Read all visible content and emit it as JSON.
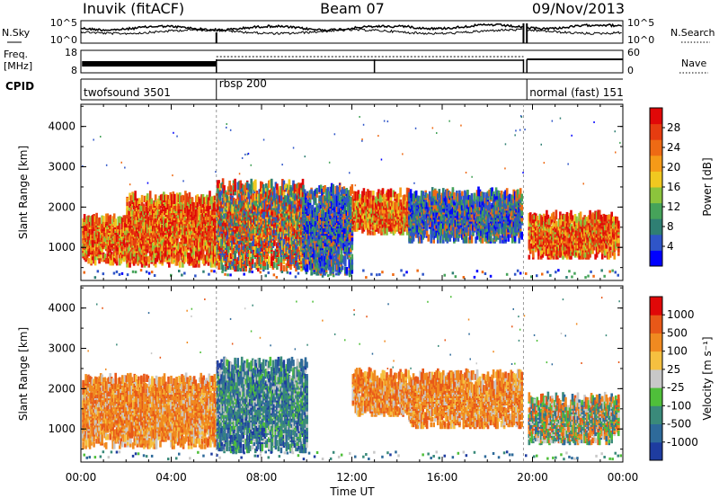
{
  "header": {
    "station": "Inuvik (fitACF)",
    "beam": "Beam 07",
    "date": "09/Nov/2013"
  },
  "left_labels": {
    "nsky": "N.Sky",
    "freq": "Freq.",
    "freq_unit": "[MHz]",
    "cpid": "CPID"
  },
  "right_labels": {
    "nsearch": "N.Search",
    "nave": "Nave"
  },
  "top_ticks": {
    "noise_left": [
      "10^5",
      "10^0"
    ],
    "noise_right": [
      "10^5",
      "10^0"
    ],
    "freq_left": [
      "18",
      "8"
    ],
    "freq_right": [
      "60",
      "0"
    ]
  },
  "cpid_modes": [
    {
      "label": "twofsound 3501",
      "start": 0.0,
      "end": 6.0
    },
    {
      "label": "rbsp 200",
      "start": 6.0,
      "end": 19.6
    },
    {
      "label": "normal (fast) 151",
      "start": 19.75,
      "end": 24.0
    }
  ],
  "chart_data": [
    {
      "type": "heatmap",
      "title": "",
      "xlabel": "Time UT",
      "ylabel": "Slant Range [km]",
      "x_ticks": [
        "00:00",
        "04:00",
        "08:00",
        "12:00",
        "16:00",
        "20:00",
        "00:00"
      ],
      "y_ticks": [
        "1000",
        "2000",
        "3000",
        "4000"
      ],
      "xlim": [
        0,
        24
      ],
      "ylim": [
        180,
        4550
      ],
      "colorbar": {
        "label": "Power [dB]",
        "ticks": [
          "4",
          "8",
          "12",
          "16",
          "20",
          "24",
          "28"
        ],
        "colors": [
          "#0000ff",
          "#2f55c8",
          "#2f7f73",
          "#46a35a",
          "#8cc43c",
          "#f0c820",
          "#f59a18",
          "#ee6a14",
          "#e63c10",
          "#e00808"
        ]
      },
      "regions": [
        {
          "t0": 0.05,
          "t1": 2.0,
          "r0": 550,
          "r1": 1650,
          "level": "high"
        },
        {
          "t0": 2.0,
          "t1": 6.0,
          "r0": 500,
          "r1": 2200,
          "level": "high"
        },
        {
          "t0": 6.0,
          "t1": 9.8,
          "r0": 400,
          "r1": 2500,
          "level": "mixed"
        },
        {
          "t0": 9.8,
          "t1": 12.0,
          "r0": 300,
          "r1": 2400,
          "level": "low"
        },
        {
          "t0": 12.0,
          "t1": 14.5,
          "r0": 1300,
          "r1": 2300,
          "level": "high"
        },
        {
          "t0": 14.5,
          "t1": 19.5,
          "r0": 1100,
          "r1": 2300,
          "level": "low"
        },
        {
          "t0": 19.8,
          "t1": 23.8,
          "r0": 700,
          "r1": 1700,
          "level": "high"
        }
      ]
    },
    {
      "type": "heatmap",
      "title": "",
      "xlabel": "Time UT",
      "ylabel": "Slant Range [km]",
      "x_ticks": [
        "00:00",
        "04:00",
        "08:00",
        "12:00",
        "16:00",
        "20:00",
        "00:00"
      ],
      "y_ticks": [
        "1000",
        "2000",
        "3000",
        "4000"
      ],
      "xlim": [
        0,
        24
      ],
      "ylim": [
        180,
        4550
      ],
      "colorbar": {
        "label": "Velocity [m s⁻¹]",
        "ticks": [
          "1000",
          "500",
          "100",
          "25",
          "-25",
          "-100",
          "-500",
          "-1000"
        ],
        "colors": [
          "#1e3ca0",
          "#2e6a9a",
          "#3a8a7a",
          "#4fbf3a",
          "#c8c8c8",
          "#f5c040",
          "#f08a20",
          "#e85818",
          "#e00808"
        ]
      },
      "regions": [
        {
          "t0": 0.05,
          "t1": 6.0,
          "r0": 500,
          "r1": 2200,
          "level": "away"
        },
        {
          "t0": 6.0,
          "t1": 10.0,
          "r0": 400,
          "r1": 2600,
          "level": "toward"
        },
        {
          "t0": 12.0,
          "t1": 14.5,
          "r0": 1300,
          "r1": 2300,
          "level": "away"
        },
        {
          "t0": 14.5,
          "t1": 19.5,
          "r0": 1000,
          "r1": 2300,
          "level": "away"
        },
        {
          "t0": 19.8,
          "t1": 23.8,
          "r0": 600,
          "r1": 1700,
          "level": "mixed"
        }
      ]
    }
  ]
}
